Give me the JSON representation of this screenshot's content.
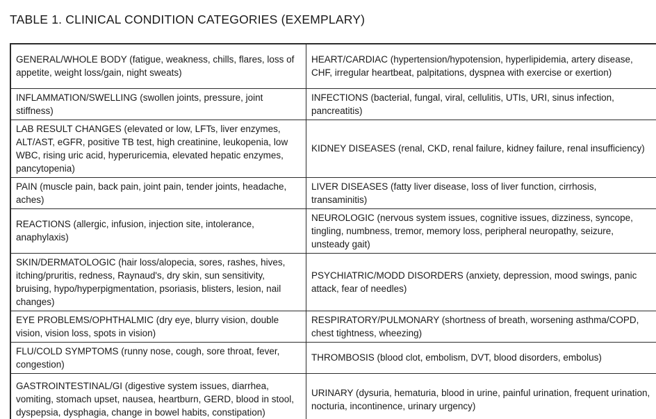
{
  "page_title": "TABLE 1. CLINICAL CONDITION CATEGORIES (EXEMPLARY)",
  "table": {
    "rows": [
      {
        "left": "GENERAL/WHOLE BODY (fatigue, weakness, chills, flares, loss of appetite, weight loss/gain, night sweats)",
        "right": "HEART/CARDIAC (hypertension/hypotension, hyperlipidemia, artery disease, CHF, irregular heartbeat, palpitations, dyspnea with exercise or exertion)"
      },
      {
        "left": "INFLAMMATION/SWELLING (swollen joints, pressure, joint stiffness)",
        "right": "INFECTIONS (bacterial, fungal, viral, cellulitis, UTIs, URI, sinus infection, pancreatitis)"
      },
      {
        "left": "LAB RESULT CHANGES (elevated or low, LFTs, liver enzymes, ALT/AST, eGFR, positive TB test, high creatinine, leukopenia, low WBC, rising uric acid, hyperuricemia, elevated hepatic enzymes, pancytopenia)",
        "right": "KIDNEY DISEASES (renal, CKD, renal failure, kidney failure, renal insufficiency)"
      },
      {
        "left": "PAIN (muscle pain, back pain, joint pain, tender joints, headache, aches)",
        "right": "LIVER DISEASES (fatty liver disease, loss of liver function, cirrhosis, transaminitis)"
      },
      {
        "left": "REACTIONS (allergic, infusion, injection site, intolerance, anaphylaxis)",
        "right": "NEUROLOGIC (nervous system issues, cognitive issues, dizziness, syncope, tingling, numbness, tremor, memory loss, peripheral neuropathy, seizure, unsteady gait)"
      },
      {
        "left": "SKIN/DERMATOLOGIC (hair loss/alopecia, sores, rashes, hives, itching/pruritis, redness, Raynaud's, dry skin, sun sensitivity, bruising, hypo/hyperpigmentation, psoriasis, blisters, lesion, nail changes)",
        "right": "PSYCHIATRIC/MODD DISORDERS (anxiety, depression, mood swings, panic attack, fear of needles)"
      },
      {
        "left": "EYE PROBLEMS/OPHTHALMIC (dry eye, blurry vision, double vision, vision loss, spots in vision)",
        "right": "RESPIRATORY/PULMONARY (shortness of breath, worsening asthma/COPD, chest tightness, wheezing)"
      },
      {
        "left": "FLU/COLD SYMPTOMS (runny nose, cough, sore throat, fever, congestion)",
        "right": "THROMBOSIS (blood clot, embolism, DVT, blood disorders, embolus)"
      },
      {
        "left": "GASTROINTESTINAL/GI (digestive system issues, diarrhea, vomiting, stomach upset, nausea, heartburn, GERD, blood in stool, dyspepsia, dysphagia, change in bowel habits, constipation)",
        "right": "URINARY (dysuria, hematuria, blood in urine, painful urination, frequent urination, nocturia, incontinence, urinary urgency)"
      }
    ]
  },
  "colors": {
    "text": "#1a1a1a",
    "border": "#2b2b2b",
    "background": "#ffffff"
  }
}
